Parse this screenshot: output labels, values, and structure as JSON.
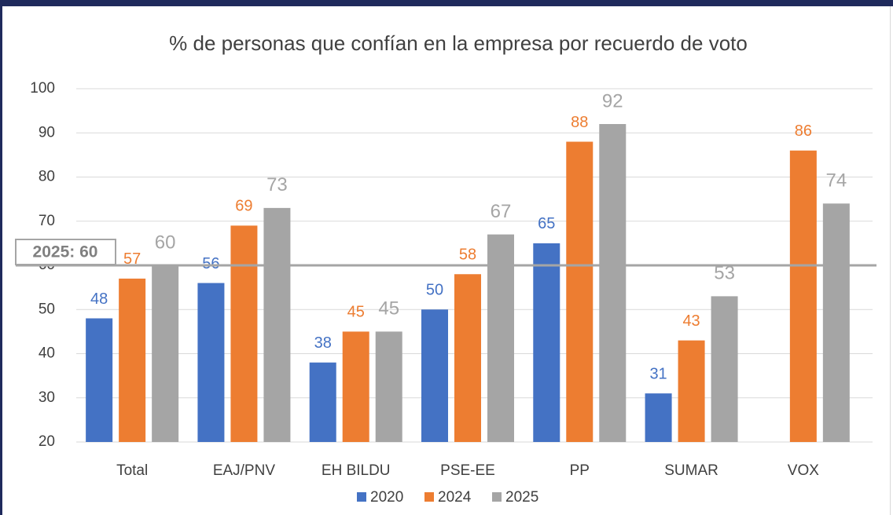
{
  "chart_data": {
    "type": "bar",
    "title": "% de personas que confían en la empresa por recuerdo de voto",
    "categories": [
      "Total",
      "EAJ/PNV",
      "EH BILDU",
      "PSE-EE",
      "PP",
      "SUMAR",
      "VOX"
    ],
    "series": [
      {
        "name": "2020",
        "color": "#4472c4",
        "values": [
          48,
          56,
          38,
          50,
          65,
          31,
          null
        ]
      },
      {
        "name": "2024",
        "color": "#ed7d31",
        "values": [
          57,
          69,
          45,
          58,
          88,
          43,
          86
        ]
      },
      {
        "name": "2025",
        "color": "#a5a5a5",
        "values": [
          60,
          73,
          45,
          67,
          92,
          53,
          74
        ]
      }
    ],
    "ylim": [
      20,
      100
    ],
    "yticks": [
      20,
      30,
      40,
      50,
      60,
      70,
      80,
      90,
      100
    ],
    "grid": true,
    "reference_line": {
      "value": 60,
      "label": "2025: 60",
      "color": "#a5a5a5"
    },
    "legend": "bottom"
  }
}
